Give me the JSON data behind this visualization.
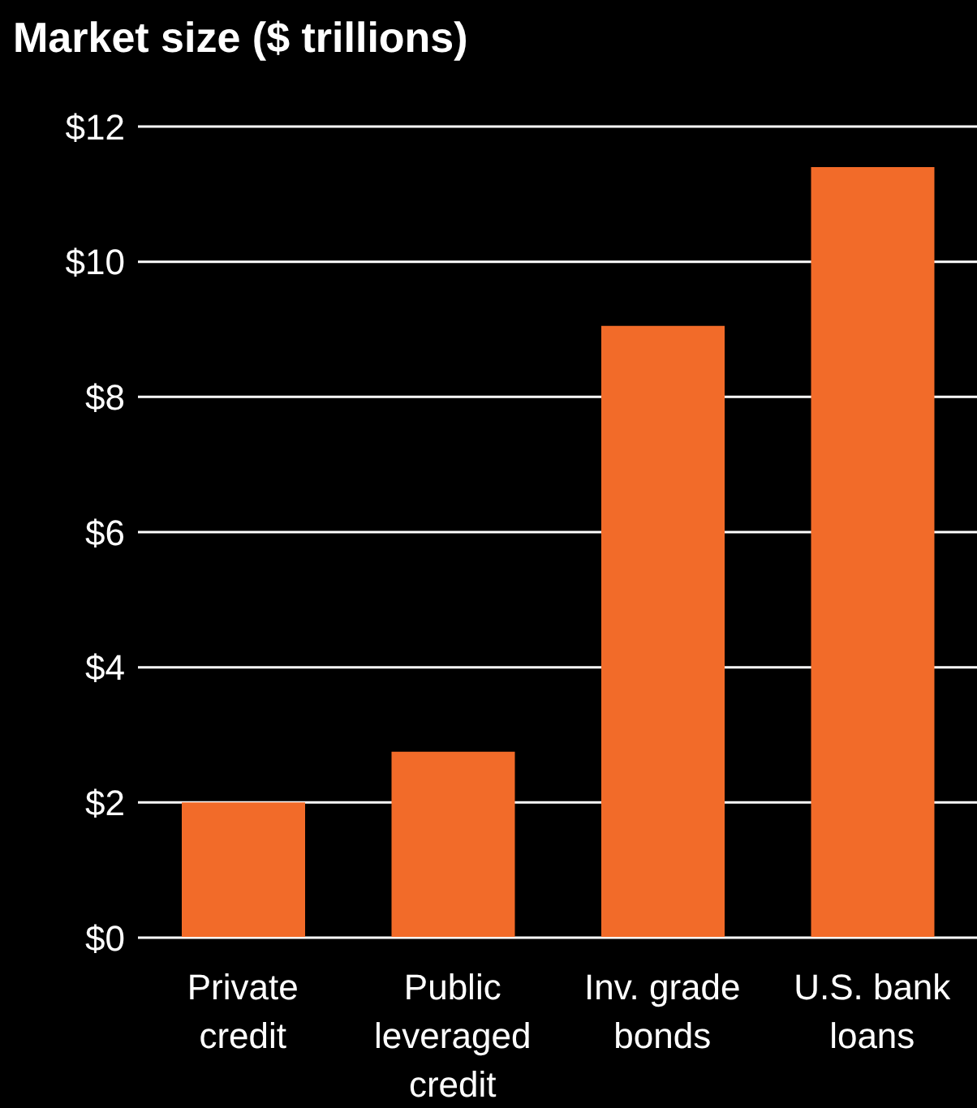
{
  "chart_data": {
    "type": "bar",
    "title": "Market size ($ trillions)",
    "categories": [
      "Private credit",
      "Public leveraged credit",
      "Inv. grade bonds",
      "U.S. bank loans"
    ],
    "values": [
      2.0,
      2.75,
      9.05,
      11.4
    ],
    "color": "#f26b29",
    "ylim": [
      0,
      12
    ],
    "yticks": [
      {
        "value": 0,
        "label": "$0"
      },
      {
        "value": 2,
        "label": "$2"
      },
      {
        "value": 4,
        "label": "$4"
      },
      {
        "value": 6,
        "label": "$6"
      },
      {
        "value": 8,
        "label": "$8"
      },
      {
        "value": 10,
        "label": "$10"
      },
      {
        "value": 12,
        "label": "$12"
      }
    ],
    "grid": "y",
    "legend": false
  }
}
